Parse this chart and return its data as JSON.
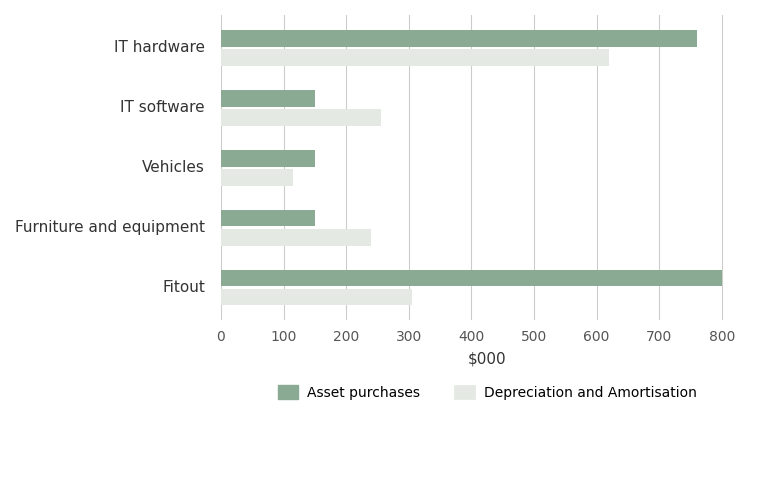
{
  "categories": [
    "Fitout",
    "Furniture and equipment",
    "Vehicles",
    "IT software",
    "IT hardware"
  ],
  "asset_purchases": [
    800,
    150,
    150,
    150,
    760
  ],
  "depreciation": [
    305,
    240,
    115,
    255,
    620
  ],
  "asset_color": "#8aaa94",
  "depreciation_color": "#e4e9e4",
  "xlabel": "$000",
  "xlim": [
    0,
    850
  ],
  "xticks": [
    0,
    100,
    200,
    300,
    400,
    500,
    600,
    700,
    800
  ],
  "legend_asset": "Asset purchases",
  "legend_depreciation": "Depreciation and Amortisation",
  "bar_height": 0.28,
  "bar_gap": 0.04,
  "background_color": "#ffffff",
  "grid_color": "#cccccc",
  "label_fontsize": 11,
  "tick_fontsize": 10,
  "xlabel_fontsize": 11
}
